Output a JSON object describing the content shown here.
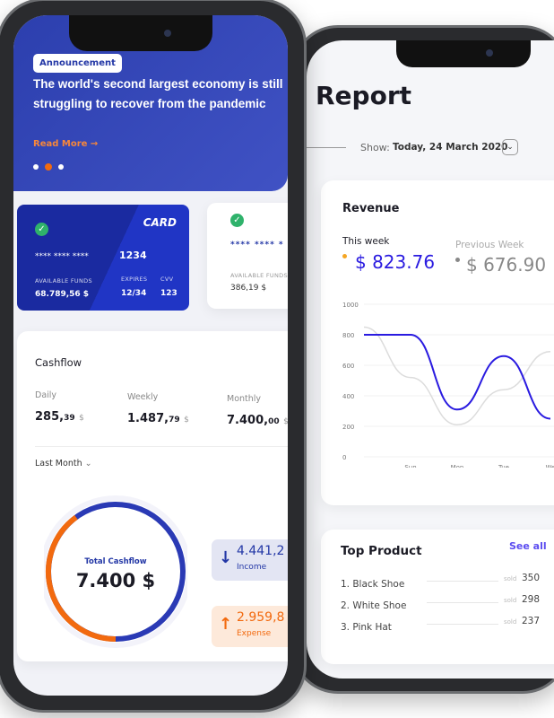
{
  "report": {
    "title": "Report",
    "show_label": "Show:",
    "show_value": "Today, 24 March 2020",
    "revenue": {
      "title": "Revenue",
      "this_week_label": "This week",
      "this_week_value": "$ 823.76",
      "previous_week_label": "Previous Week",
      "previous_week_value": "$ 676.90"
    },
    "top_product": {
      "title": "Top Product",
      "see_all": "See all",
      "sold_label": "sold",
      "items": [
        {
          "name": "1. Black Shoe",
          "sold": "350"
        },
        {
          "name": "2. White Shoe",
          "sold": "298"
        },
        {
          "name": "3. Pink Hat",
          "sold": "237"
        }
      ]
    }
  },
  "chart_data": {
    "type": "line",
    "categories": [
      "",
      "Sun",
      "Mon",
      "Tue",
      "We"
    ],
    "y_ticks": [
      "0",
      "200",
      "400",
      "600",
      "800",
      "1000"
    ],
    "ylim": [
      0,
      1000
    ],
    "grid": true,
    "series": [
      {
        "name": "This week",
        "color": "#2a1be0",
        "values": [
          800,
          800,
          310,
          660,
          250
        ]
      },
      {
        "name": "Previous Week",
        "color": "#dcdcdc",
        "values": [
          850,
          520,
          210,
          440,
          690
        ]
      }
    ]
  },
  "dashboard": {
    "announcement": {
      "badge": "Announcement",
      "headline": "The world's second largest economy is still struggling to recover from the pandemic",
      "read_more": "Read More",
      "active_dot": 1
    },
    "cards": [
      {
        "brand": "CARD",
        "number_mask": "**** **** ****",
        "last4": "1234",
        "funds_label": "AVAILABLE FUNDS",
        "funds": "68.789,56 $",
        "expires_label": "EXPIRES",
        "expires": "12/34",
        "cvv_label": "CVV",
        "cvv": "123"
      },
      {
        "number_mask": "**** **** *",
        "funds_label": "AVAILABLE FUNDS",
        "funds": "386,19 $"
      }
    ],
    "cashflow": {
      "title": "Cashflow",
      "daily_label": "Daily",
      "daily_int": "285,",
      "daily_dec": "39",
      "weekly_label": "Weekly",
      "weekly_int": "1.487,",
      "weekly_dec": "79",
      "monthly_label": "Monthly",
      "monthly_int": "7.400,",
      "monthly_dec": "00",
      "currency": "$",
      "period": "Last Month",
      "total_label": "Total Cashflow",
      "total_value": "7.400 $",
      "expense_fraction": 0.4,
      "income_value": "4.441,2",
      "income_label": "Income",
      "expense_value": "2.959,8",
      "expense_label": "Expense"
    }
  },
  "colors": {
    "primary": "#2337a6",
    "accent": "#f26a0f",
    "chart_line": "#2a1be0",
    "success": "#2fb26b"
  }
}
